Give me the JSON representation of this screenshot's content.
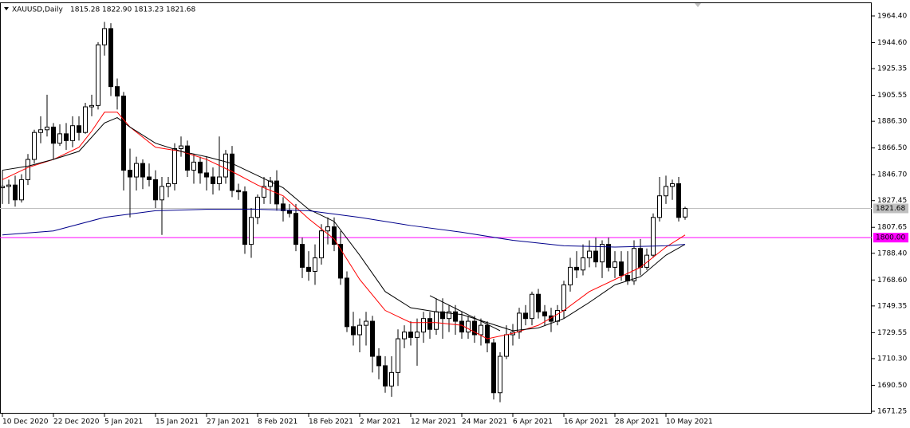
{
  "chart_data": {
    "type": "candlestick",
    "title": "XAUUSD,Daily",
    "header_values": [
      "1815.28",
      "1822.90",
      "1813.23",
      "1821.68"
    ],
    "categories": [
      "10 Dec 2020",
      null,
      null,
      null,
      null,
      null,
      null,
      null,
      "22 Dec 2020",
      null,
      null,
      null,
      null,
      null,
      null,
      null,
      "5 Jan 2021",
      null,
      null,
      null,
      null,
      null,
      null,
      null,
      "15 Jan 2021",
      null,
      null,
      null,
      null,
      null,
      null,
      null,
      "27 Jan 2021",
      null,
      null,
      null,
      null,
      null,
      null,
      null,
      "8 Feb 2021",
      null,
      null,
      null,
      null,
      null,
      null,
      null,
      "18 Feb 2021",
      null,
      null,
      null,
      null,
      null,
      null,
      null,
      "2 Mar 2021",
      null,
      null,
      null,
      null,
      null,
      null,
      null,
      "12 Mar 2021",
      null,
      null,
      null,
      null,
      null,
      null,
      null,
      "24 Mar 2021",
      null,
      null,
      null,
      null,
      null,
      null,
      null,
      "6 Apr 2021",
      null,
      null,
      null,
      null,
      null,
      null,
      null,
      "16 Apr 2021",
      null,
      null,
      null,
      null,
      null,
      null,
      null,
      "28 Apr 2021",
      null,
      null,
      null,
      null,
      null,
      null,
      null,
      "10 May 2021",
      null,
      null,
      null
    ],
    "open": [
      1837,
      1838,
      1839,
      1828,
      1843,
      1858,
      1878,
      1880,
      1882,
      1870,
      1877,
      1872,
      1883,
      1878,
      1897,
      1898,
      1943,
      1955,
      1912,
      1905,
      1850,
      1845,
      1855,
      1845,
      1843,
      1828,
      1838,
      1840,
      1866,
      1868,
      1850,
      1856,
      1848,
      1845,
      1840,
      1845,
      1862,
      1835,
      1834,
      1795,
      1815,
      1830,
      1838,
      1842,
      1825,
      1820,
      1818,
      1795,
      1778,
      1775,
      1785,
      1805,
      1808,
      1795,
      1770,
      1734,
      1728,
      1735,
      1738,
      1712,
      1705,
      1690,
      1700,
      1725,
      1730,
      1726,
      1730,
      1740,
      1732,
      1745,
      1740,
      1745,
      1738,
      1730,
      1738,
      1728,
      1735,
      1722,
      1685,
      1712,
      1728,
      1730,
      1744,
      1740,
      1758,
      1745,
      1742,
      1738,
      1746,
      1765,
      1778,
      1776,
      1785,
      1790,
      1782,
      1795,
      1778,
      1782,
      1772,
      1768,
      1792,
      1778,
      1787,
      1815,
      1831,
      1838,
      1840,
      1815.28
    ],
    "high": [
      1850,
      1843,
      1846,
      1847,
      1862,
      1880,
      1890,
      1906,
      1885,
      1884,
      1885,
      1890,
      1890,
      1900,
      1906,
      1945,
      1960,
      1959,
      1918,
      1908,
      1866,
      1860,
      1858,
      1855,
      1850,
      1845,
      1845,
      1870,
      1875,
      1872,
      1862,
      1860,
      1860,
      1852,
      1875,
      1865,
      1868,
      1840,
      1838,
      1822,
      1832,
      1845,
      1845,
      1850,
      1830,
      1825,
      1825,
      1800,
      1790,
      1795,
      1810,
      1815,
      1815,
      1805,
      1775,
      1745,
      1740,
      1745,
      1742,
      1718,
      1712,
      1712,
      1732,
      1735,
      1738,
      1740,
      1745,
      1745,
      1755,
      1755,
      1750,
      1750,
      1745,
      1742,
      1742,
      1740,
      1738,
      1725,
      1715,
      1735,
      1736,
      1748,
      1750,
      1760,
      1762,
      1750,
      1748,
      1750,
      1768,
      1785,
      1790,
      1795,
      1798,
      1800,
      1798,
      1800,
      1790,
      1790,
      1790,
      1798,
      1799,
      1792,
      1818,
      1845,
      1846,
      1843,
      1845,
      1822.9
    ],
    "low": [
      1825,
      1825,
      1823,
      1826,
      1839,
      1855,
      1870,
      1875,
      1858,
      1868,
      1865,
      1867,
      1872,
      1877,
      1890,
      1895,
      1935,
      1905,
      1895,
      1835,
      1815,
      1835,
      1836,
      1838,
      1822,
      1802,
      1830,
      1835,
      1860,
      1845,
      1840,
      1840,
      1835,
      1832,
      1835,
      1840,
      1830,
      1828,
      1788,
      1785,
      1810,
      1825,
      1825,
      1820,
      1812,
      1815,
      1790,
      1770,
      1768,
      1765,
      1780,
      1795,
      1790,
      1765,
      1730,
      1720,
      1715,
      1720,
      1700,
      1695,
      1685,
      1682,
      1690,
      1718,
      1720,
      1705,
      1722,
      1725,
      1728,
      1725,
      1730,
      1728,
      1725,
      1725,
      1722,
      1720,
      1715,
      1680,
      1678,
      1710,
      1720,
      1725,
      1735,
      1735,
      1740,
      1735,
      1730,
      1735,
      1740,
      1760,
      1770,
      1772,
      1778,
      1778,
      1770,
      1775,
      1770,
      1768,
      1765,
      1765,
      1772,
      1776,
      1785,
      1812,
      1825,
      1828,
      1812,
      1813.23
    ],
    "close": [
      1838,
      1839,
      1828,
      1843,
      1858,
      1878,
      1880,
      1882,
      1870,
      1877,
      1872,
      1883,
      1878,
      1897,
      1898,
      1943,
      1955,
      1912,
      1905,
      1850,
      1845,
      1855,
      1845,
      1843,
      1828,
      1838,
      1840,
      1866,
      1868,
      1850,
      1856,
      1848,
      1845,
      1840,
      1845,
      1862,
      1835,
      1834,
      1795,
      1815,
      1830,
      1838,
      1842,
      1825,
      1820,
      1818,
      1795,
      1778,
      1775,
      1785,
      1805,
      1808,
      1795,
      1770,
      1734,
      1728,
      1735,
      1738,
      1712,
      1705,
      1690,
      1700,
      1725,
      1730,
      1726,
      1730,
      1740,
      1732,
      1745,
      1740,
      1745,
      1738,
      1730,
      1738,
      1728,
      1735,
      1722,
      1685,
      1712,
      1728,
      1730,
      1744,
      1740,
      1758,
      1745,
      1742,
      1738,
      1746,
      1765,
      1778,
      1776,
      1785,
      1790,
      1782,
      1795,
      1778,
      1782,
      1772,
      1768,
      1792,
      1778,
      1787,
      1815,
      1831,
      1838,
      1840,
      1815,
      1821.68
    ],
    "up_color": "#ffffff",
    "down_color": "#000000",
    "edge_color": "#000000",
    "lines": [
      {
        "color": "#ff0000",
        "x": [
          0,
          4,
          8,
          12,
          14,
          16,
          18,
          20,
          24,
          28,
          32,
          36,
          40,
          44,
          48,
          52,
          56,
          60,
          64,
          68,
          72,
          76,
          80,
          84,
          88,
          92,
          96,
          100,
          104,
          107
        ],
        "values": [
          1843,
          1852,
          1858,
          1867,
          1879,
          1893,
          1893,
          1882,
          1867,
          1864,
          1858,
          1849,
          1839,
          1831,
          1814,
          1799,
          1769,
          1746,
          1737,
          1737,
          1735,
          1725,
          1729,
          1735,
          1746,
          1760,
          1769,
          1778,
          1793,
          1802
        ]
      },
      {
        "color": "#000000",
        "x": [
          0,
          4,
          8,
          12,
          16,
          18,
          20,
          24,
          28,
          32,
          36,
          40,
          44,
          48,
          52,
          56,
          60,
          64,
          68,
          72,
          76,
          80,
          84,
          88,
          92,
          96,
          100,
          104,
          107
        ],
        "values": [
          1850,
          1853,
          1858,
          1864,
          1885,
          1889,
          1882,
          1870,
          1864,
          1860,
          1855,
          1846,
          1837,
          1821,
          1812,
          1787,
          1760,
          1748,
          1745,
          1743,
          1737,
          1731,
          1733,
          1740,
          1752,
          1765,
          1771,
          1787,
          1795
        ]
      },
      {
        "color": "#00008b",
        "x": [
          0,
          8,
          16,
          24,
          32,
          40,
          48,
          56,
          64,
          72,
          80,
          88,
          96,
          104,
          107
        ],
        "values": [
          1802,
          1805,
          1815,
          1820,
          1821,
          1821,
          1820,
          1815,
          1809,
          1804,
          1798,
          1794,
          1793,
          1794,
          1795
        ]
      },
      {
        "color": "#000000",
        "x": [
          67,
          78
        ],
        "values": [
          1757,
          1731
        ]
      }
    ],
    "hlines": [
      {
        "value": 1821.68,
        "label": "1821.68",
        "color": "#c0c0c0",
        "text_color": "#000000"
      },
      {
        "value": 1800,
        "label": "1800.00",
        "color": "#ff00ff",
        "text_color": "#ffffff"
      }
    ],
    "ylim": [
      1669.48,
      1974.45
    ],
    "yticks": [
      {
        "value": 1964.4,
        "label": "1964.40"
      },
      {
        "value": 1944.6,
        "label": "1944.60"
      },
      1925.35,
      1905.55,
      {
        "value": 1886.3,
        "label": "1886.30"
      },
      {
        "value": 1866.5,
        "label": "1866.50"
      },
      {
        "value": 1846.7,
        "label": "1846.70"
      },
      1827.45,
      1807.65,
      {
        "value": 1788.4,
        "label": "1788.40"
      },
      {
        "value": 1768.6,
        "label": "1768.60"
      },
      1749.35,
      1729.55,
      {
        "value": 1710.3,
        "label": "1710.30"
      },
      {
        "value": 1690.5,
        "label": "1690.50"
      },
      1671.25
    ]
  }
}
